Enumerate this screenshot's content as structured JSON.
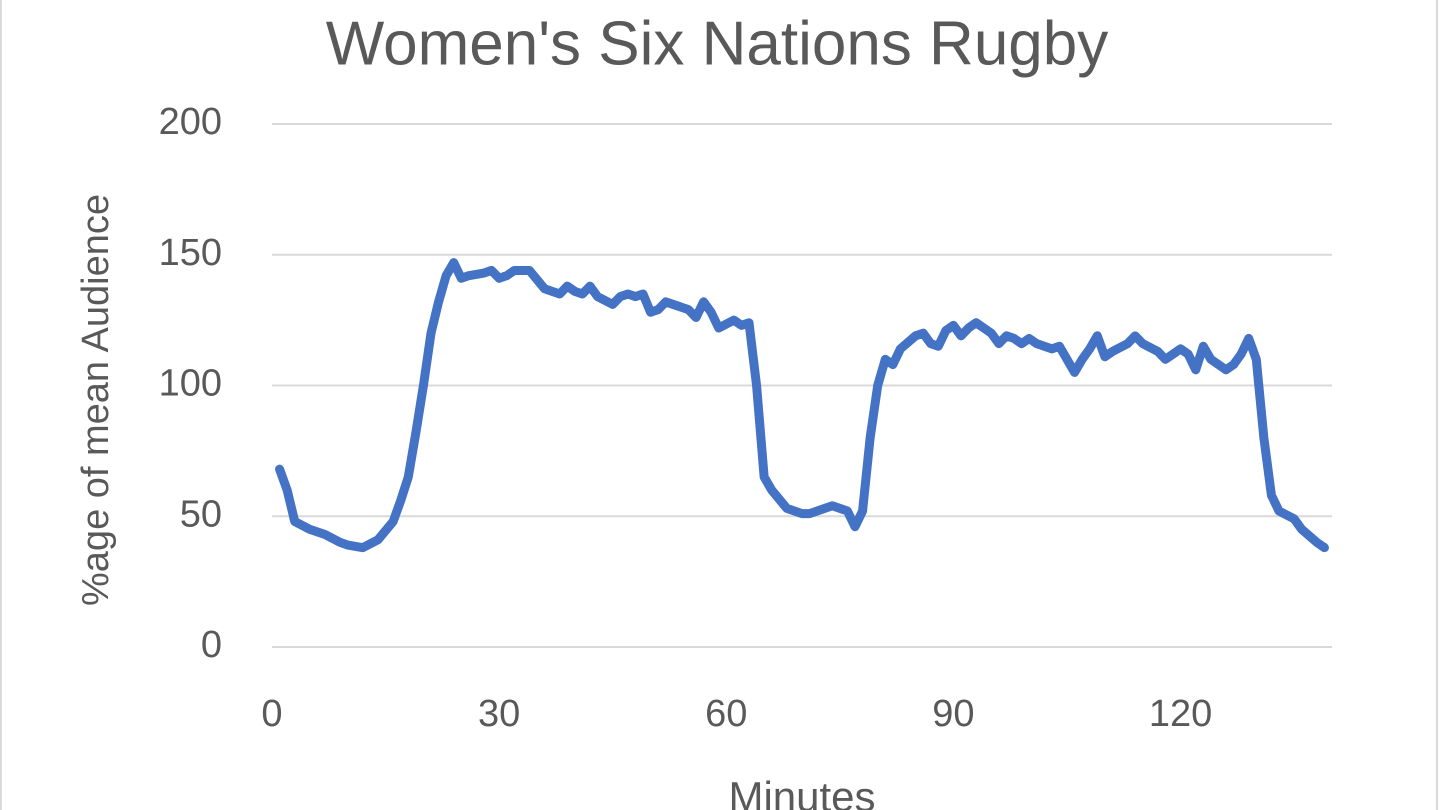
{
  "chart_data": {
    "type": "line",
    "title": "Women's Six Nations Rugby",
    "x_label": "Minutes",
    "y_label": "%age of mean Audience",
    "x": [
      1,
      2,
      3,
      5,
      7,
      9,
      10,
      12,
      14,
      16,
      17,
      18,
      19,
      20,
      21,
      22,
      23,
      24,
      25,
      26,
      28,
      29,
      30,
      31,
      32,
      33,
      34,
      36,
      38,
      39,
      40,
      41,
      42,
      43,
      45,
      46,
      47,
      48,
      49,
      50,
      51,
      52,
      53,
      55,
      56,
      57,
      58,
      59,
      61,
      62,
      63,
      64,
      65,
      66,
      68,
      70,
      71,
      72,
      73,
      74,
      75,
      76,
      77,
      78,
      79,
      80,
      81,
      82,
      83,
      85,
      86,
      87,
      88,
      89,
      90,
      91,
      92,
      93,
      94,
      95,
      96,
      97,
      98,
      99,
      100,
      101,
      102,
      103,
      104,
      105,
      106,
      107,
      108,
      109,
      110,
      111,
      113,
      114,
      115,
      117,
      118,
      119,
      120,
      121,
      122,
      123,
      124,
      126,
      127,
      128,
      129,
      130,
      131,
      132,
      133,
      135,
      136,
      138,
      139
    ],
    "series": [
      {
        "name": "Audience",
        "color": "#4472c4",
        "values": [
          68,
          60,
          48,
          45,
          43,
          40,
          39,
          38,
          41,
          48,
          56,
          65,
          82,
          100,
          120,
          132,
          142,
          147,
          141,
          142,
          143,
          144,
          141,
          142,
          144,
          144,
          144,
          137,
          135,
          138,
          136,
          135,
          138,
          134,
          131,
          134,
          135,
          134,
          135,
          128,
          129,
          132,
          131,
          129,
          126,
          132,
          128,
          122,
          125,
          123,
          124,
          100,
          65,
          60,
          53,
          51,
          51,
          52,
          53,
          54,
          53,
          52,
          46,
          52,
          80,
          100,
          110,
          108,
          114,
          119,
          120,
          116,
          115,
          121,
          123,
          119,
          122,
          124,
          122,
          120,
          116,
          119,
          118,
          116,
          118,
          116,
          115,
          114,
          115,
          110,
          105,
          110,
          114,
          119,
          111,
          113,
          116,
          119,
          116,
          113,
          110,
          112,
          114,
          112,
          106,
          115,
          110,
          106,
          108,
          112,
          118,
          110,
          80,
          58,
          52,
          49,
          45,
          40,
          38
        ]
      }
    ],
    "xlim": [
      0,
      140
    ],
    "xticks": [
      0,
      30,
      60,
      90,
      120
    ],
    "ylim": [
      0,
      200
    ],
    "yticks": [
      0,
      50,
      100,
      150,
      200
    ],
    "grid": true
  }
}
